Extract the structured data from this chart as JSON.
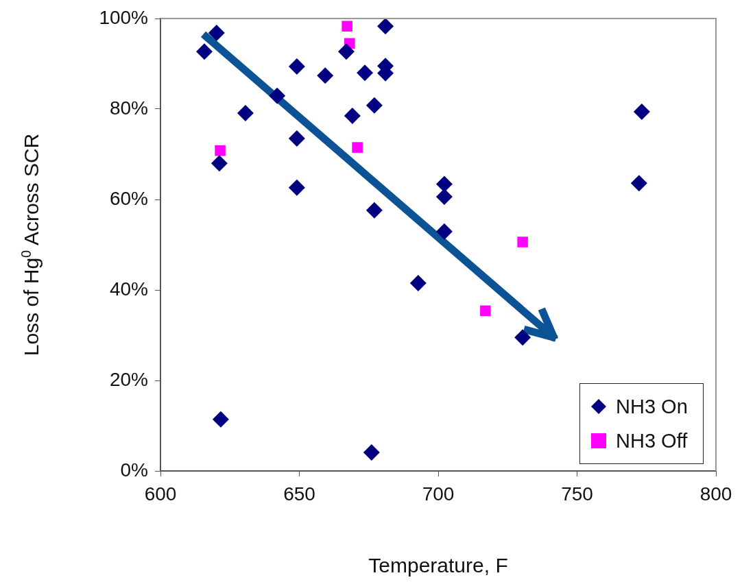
{
  "chart_data": {
    "type": "scatter",
    "xlabel": "Temperature, F",
    "ylabel": "Loss of Hg$^{0}$ Across SCR",
    "xlim": [
      600,
      800
    ],
    "xticks": [
      600,
      650,
      700,
      750,
      800
    ],
    "ylim": [
      0,
      100
    ],
    "yticks": [
      {
        "value": 0,
        "label": "0%"
      },
      {
        "value": 20,
        "label": "20%"
      },
      {
        "value": 40,
        "label": "40%"
      },
      {
        "value": 60,
        "label": "60%"
      },
      {
        "value": 80,
        "label": "80%"
      },
      {
        "value": 100,
        "label": "100%"
      }
    ],
    "grid": false,
    "legend": "bottom right",
    "series": [
      {
        "name": "NH3 On",
        "color": "#000080",
        "marker": "diamond",
        "x": [
          615.8,
          620.2,
          621.2,
          621.7,
          630.6,
          642,
          649.1,
          649.1,
          649.1,
          659.3,
          666.9,
          669.1,
          673.6,
          676,
          677,
          677,
          681,
          681,
          681,
          692.8,
          702.2,
          702.2,
          702.2,
          730.4,
          772.3,
          773.3
        ],
        "values": [
          92.7,
          96.8,
          68,
          11.4,
          79.1,
          82.9,
          89.4,
          73.5,
          62.6,
          87.4,
          92.7,
          78.5,
          88,
          4.1,
          80.8,
          57.6,
          98.3,
          89.5,
          87.9,
          41.5,
          63.4,
          60.6,
          52.9,
          29.5,
          63.6,
          79.4
        ]
      },
      {
        "name": "NH3 Off",
        "color": "#ff00ff",
        "marker": "square",
        "x": [
          621.5,
          667.2,
          668.1,
          670.9,
          717,
          730.4
        ],
        "values": [
          70.8,
          98.3,
          94.5,
          71.5,
          35.4,
          50.6
        ]
      }
    ]
  }
}
